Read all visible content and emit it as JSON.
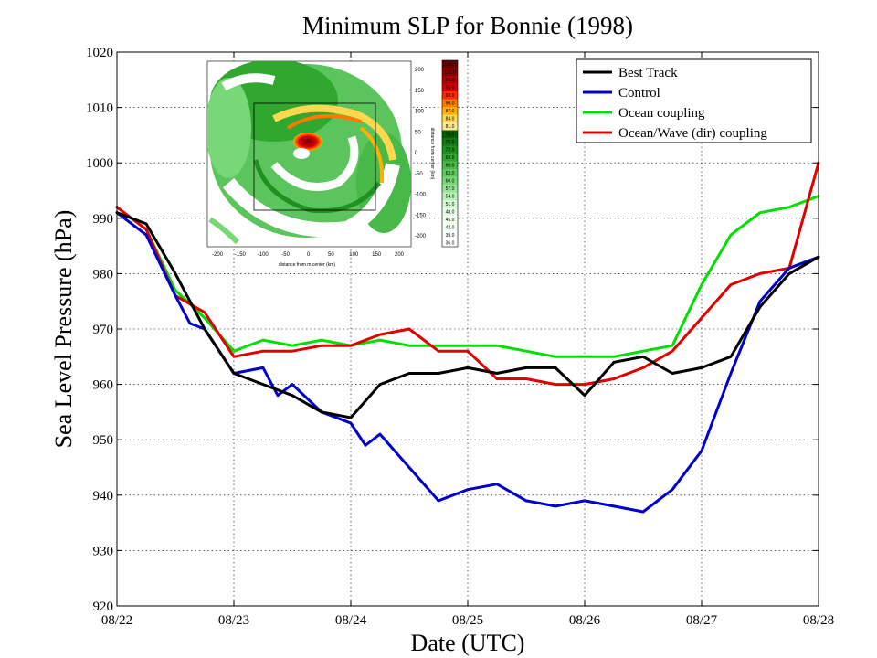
{
  "chart_data": {
    "type": "line",
    "title": "Minimum SLP for Bonnie (1998)",
    "xlabel": "Date (UTC)",
    "ylabel": "Sea Level Pressure (hPa)",
    "xlim": [
      "08/22",
      "08/28"
    ],
    "ylim": [
      920,
      1020
    ],
    "grid": true,
    "legend_position": "top-right",
    "x_tick_labels": [
      "08/22",
      "08/23",
      "08/24",
      "08/25",
      "08/26",
      "08/27",
      "08/28"
    ],
    "y_tick_labels": [
      "920",
      "930",
      "940",
      "950",
      "960",
      "970",
      "980",
      "990",
      "1000",
      "1010",
      "1020"
    ],
    "series": [
      {
        "name": "Best Track",
        "color": "#000000",
        "x": [
          "08/22 00:00",
          "08/22 06:00",
          "08/22 12:00",
          "08/22 18:00",
          "08/23 00:00",
          "08/23 06:00",
          "08/23 12:00",
          "08/23 18:00",
          "08/24 00:00",
          "08/24 06:00",
          "08/24 12:00",
          "08/24 18:00",
          "08/25 00:00",
          "08/25 06:00",
          "08/25 12:00",
          "08/25 18:00",
          "08/26 00:00",
          "08/26 06:00",
          "08/26 12:00",
          "08/26 18:00",
          "08/27 00:00",
          "08/27 06:00",
          "08/27 12:00",
          "08/27 18:00",
          "08/28 00:00"
        ],
        "y": [
          991,
          989,
          980,
          970,
          962,
          960,
          958,
          955,
          954,
          960,
          962,
          962,
          963,
          962,
          963,
          963,
          958,
          964,
          965,
          962,
          963,
          965,
          974,
          980,
          983
        ]
      },
      {
        "name": "Control",
        "color": "#0000cc",
        "x": [
          "08/22 00:00",
          "08/22 06:00",
          "08/22 12:00",
          "08/22 15:00",
          "08/22 18:00",
          "08/23 00:00",
          "08/23 06:00",
          "08/23 09:00",
          "08/23 12:00",
          "08/23 18:00",
          "08/24 00:00",
          "08/24 03:00",
          "08/24 06:00",
          "08/24 12:00",
          "08/24 18:00",
          "08/25 00:00",
          "08/25 06:00",
          "08/25 12:00",
          "08/25 18:00",
          "08/26 00:00",
          "08/26 06:00",
          "08/26 12:00",
          "08/26 18:00",
          "08/27 00:00",
          "08/27 06:00",
          "08/27 12:00",
          "08/27 18:00",
          "08/28 00:00"
        ],
        "y": [
          991,
          987,
          976,
          971,
          970,
          962,
          963,
          958,
          960,
          955,
          953,
          949,
          951,
          945,
          939,
          941,
          942,
          939,
          938,
          939,
          938,
          937,
          941,
          948,
          962,
          975,
          981,
          983
        ]
      },
      {
        "name": "Ocean coupling",
        "color": "#00e000",
        "x": [
          "08/22 00:00",
          "08/22 06:00",
          "08/22 12:00",
          "08/22 18:00",
          "08/23 00:00",
          "08/23 06:00",
          "08/23 12:00",
          "08/23 18:00",
          "08/24 00:00",
          "08/24 06:00",
          "08/24 12:00",
          "08/24 18:00",
          "08/25 00:00",
          "08/25 06:00",
          "08/25 12:00",
          "08/25 18:00",
          "08/26 00:00",
          "08/26 06:00",
          "08/26 12:00",
          "08/26 18:00",
          "08/27 00:00",
          "08/27 06:00",
          "08/27 12:00",
          "08/27 18:00",
          "08/28 00:00"
        ],
        "y": [
          992,
          988,
          977,
          972,
          966,
          968,
          967,
          968,
          967,
          968,
          967,
          967,
          967,
          967,
          966,
          965,
          965,
          965,
          966,
          967,
          978,
          987,
          991,
          992,
          994
        ]
      },
      {
        "name": "Ocean/Wave (dir) coupling",
        "color": "#e00000",
        "x": [
          "08/22 00:00",
          "08/22 06:00",
          "08/22 12:00",
          "08/22 18:00",
          "08/23 00:00",
          "08/23 06:00",
          "08/23 12:00",
          "08/23 18:00",
          "08/24 00:00",
          "08/24 06:00",
          "08/24 12:00",
          "08/24 18:00",
          "08/25 00:00",
          "08/25 06:00",
          "08/25 12:00",
          "08/25 18:00",
          "08/26 00:00",
          "08/26 06:00",
          "08/26 12:00",
          "08/26 18:00",
          "08/27 00:00",
          "08/27 06:00",
          "08/27 12:00",
          "08/27 18:00",
          "08/28 00:00"
        ],
        "y": [
          992,
          988,
          976,
          973,
          965,
          966,
          966,
          967,
          967,
          969,
          970,
          966,
          966,
          961,
          961,
          960,
          960,
          961,
          963,
          966,
          972,
          978,
          980,
          981,
          1000
        ]
      }
    ],
    "inset": {
      "x_ticks": [
        "-200",
        "-150",
        "-100",
        "-50",
        "0",
        "50",
        "100",
        "150",
        "200"
      ],
      "y_ticks": [
        "200",
        "150",
        "100",
        "50",
        "0",
        "-50",
        "-100",
        "-150",
        "-200"
      ],
      "xlabel": "distance from m center (km)",
      "ylabel": "distance from center (km)",
      "colorbar_labels": [
        "105.0",
        "102.0",
        "99.0",
        "96.0",
        "93.0",
        "90.0",
        "87.0",
        "84.0",
        "81.0",
        "78.0",
        "75.0",
        "72.0",
        "69.0",
        "66.0",
        "63.0",
        "60.0",
        "57.0",
        "54.0",
        "51.0",
        "48.0",
        "45.0",
        "42.0",
        "39.0",
        "36.0"
      ],
      "colorbar_colors": [
        "#6b0000",
        "#8b0000",
        "#b00000",
        "#d40000",
        "#ff2a00",
        "#ff7800",
        "#ffb000",
        "#ffd850",
        "#ffe890",
        "#006000",
        "#107810",
        "#209020",
        "#30a830",
        "#48b848",
        "#60c860",
        "#78d878",
        "#98e498",
        "#b8f0b8",
        "#d4f8d4",
        "#e8fce8",
        "#f0fff0",
        "#f6fff6",
        "#fbfffb",
        "#ffffff"
      ]
    }
  }
}
